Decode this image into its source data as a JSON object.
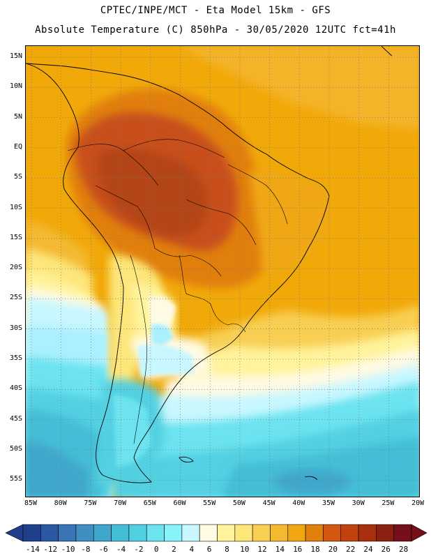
{
  "title": {
    "line1": "CPTEC/INPE/MCT -  Eta Model 15km - GFS",
    "line2": "Absolute Temperature (C) 850hPa - 30/05/2020 12UTC fct=41h"
  },
  "map": {
    "lat_labels": [
      "15N",
      "10N",
      "5N",
      "EQ",
      "5S",
      "10S",
      "15S",
      "20S",
      "25S",
      "30S",
      "35S",
      "40S",
      "45S",
      "50S",
      "55S"
    ],
    "lon_labels": [
      "85W",
      "80W",
      "75W",
      "70W",
      "65W",
      "60W",
      "55W",
      "50W",
      "45W",
      "40W",
      "35W",
      "30W",
      "25W",
      "20W"
    ],
    "colors": {
      "ocean_warm": "#f1a90a",
      "land_hot": "#c8501a",
      "land_core": "#b44414",
      "warm_orange": "#e57a12",
      "yellow": "#f8e07a",
      "pale": "#fff5d8",
      "cyan_light": "#aaf0ff",
      "cyan": "#5ee2ee",
      "teal": "#3cbcd2",
      "blue_mid": "#3a94c6"
    }
  },
  "colorbar": {
    "labels": [
      "-14",
      "-12",
      "-10",
      "-8",
      "-6",
      "-4",
      "-2",
      "0",
      "2",
      "4",
      "6",
      "8",
      "10",
      "12",
      "14",
      "16",
      "18",
      "20",
      "22",
      "24",
      "26",
      "28"
    ],
    "colors": [
      "#1f3e8c",
      "#2b58a3",
      "#3a74b6",
      "#3f8fc3",
      "#3fa7cc",
      "#44bdd6",
      "#52d0e2",
      "#6ce3ef",
      "#88f3fa",
      "#c8f7ff",
      "#fffae4",
      "#fff39c",
      "#fde67a",
      "#f8cf53",
      "#f4b930",
      "#f0a712",
      "#e17f0d",
      "#d4570f",
      "#c2420f",
      "#a8300d",
      "#8a2010",
      "#770f1a"
    ]
  }
}
